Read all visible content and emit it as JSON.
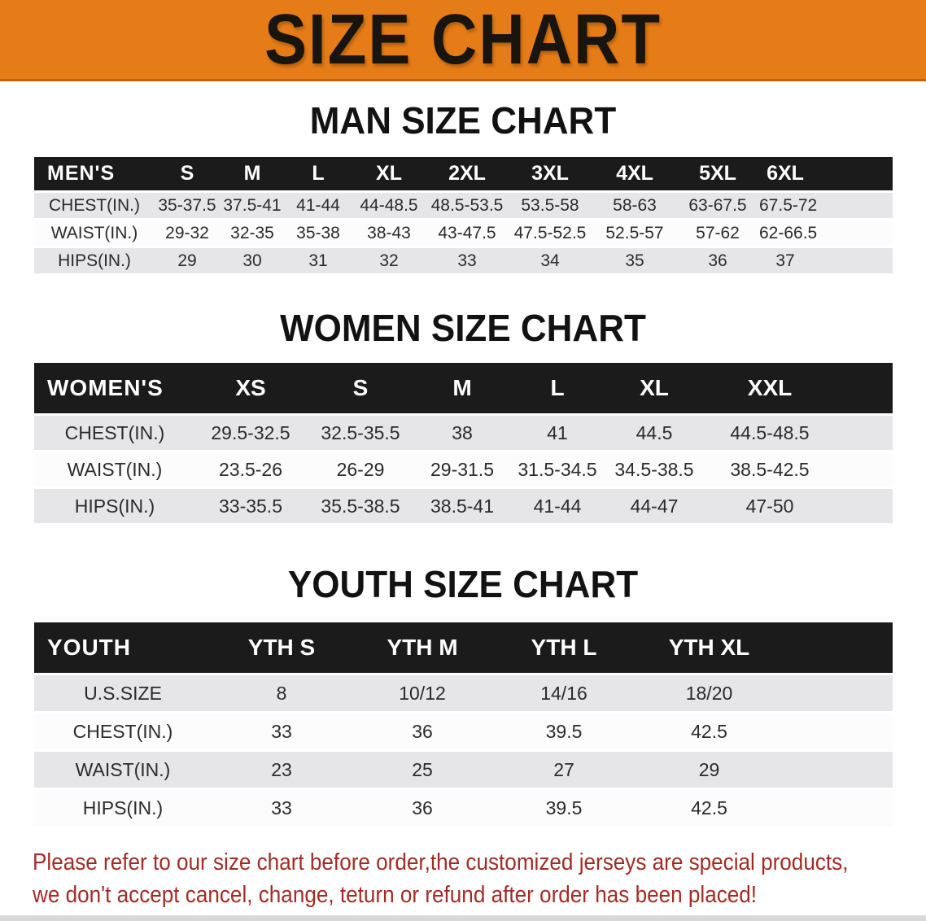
{
  "banner": {
    "title": "SIZE CHART",
    "bg_color": "#E67C17",
    "text_color": "#181410"
  },
  "sections": [
    {
      "heading": "MAN SIZE CHART",
      "table": {
        "header_label": "MEN'S",
        "columns": [
          "S",
          "M",
          "L",
          "XL",
          "2XL",
          "3XL",
          "4XL",
          "5XL",
          "6XL"
        ],
        "rows": [
          {
            "label": "CHEST(IN.)",
            "values": [
              "35-37.5",
              "37.5-41",
              "41-44",
              "44-48.5",
              "48.5-53.5",
              "53.5-58",
              "58-63",
              "63-67.5",
              "67.5-72"
            ]
          },
          {
            "label": "WAIST(IN.)",
            "values": [
              "29-32",
              "32-35",
              "35-38",
              "38-43",
              "43-47.5",
              "47.5-52.5",
              "52.5-57",
              "57-62",
              "62-66.5"
            ]
          },
          {
            "label": "HIPS(IN.)",
            "values": [
              "29",
              "30",
              "31",
              "32",
              "33",
              "34",
              "35",
              "36",
              "37"
            ]
          }
        ]
      }
    },
    {
      "heading": "WOMEN SIZE CHART",
      "table": {
        "header_label": "WOMEN'S",
        "columns": [
          "XS",
          "S",
          "M",
          "L",
          "XL",
          "XXL"
        ],
        "rows": [
          {
            "label": "CHEST(IN.)",
            "values": [
              "29.5-32.5",
              "32.5-35.5",
              "38",
              "41",
              "44.5",
              "44.5-48.5"
            ]
          },
          {
            "label": "WAIST(IN.)",
            "values": [
              "23.5-26",
              "26-29",
              "29-31.5",
              "31.5-34.5",
              "34.5-38.5",
              "38.5-42.5"
            ]
          },
          {
            "label": "HIPS(IN.)",
            "values": [
              "33-35.5",
              "35.5-38.5",
              "38.5-41",
              "41-44",
              "44-47",
              "47-50"
            ]
          }
        ]
      }
    },
    {
      "heading": "YOUTH SIZE CHART",
      "table": {
        "header_label": "YOUTH",
        "columns": [
          "YTH S",
          "YTH M",
          "YTH L",
          "YTH XL"
        ],
        "rows": [
          {
            "label": "U.S.SIZE",
            "values": [
              "8",
              "10/12",
              "14/16",
              "18/20"
            ]
          },
          {
            "label": "CHEST(IN.)",
            "values": [
              "33",
              "36",
              "39.5",
              "42.5"
            ]
          },
          {
            "label": "WAIST(IN.)",
            "values": [
              "23",
              "25",
              "27",
              "29"
            ]
          },
          {
            "label": "HIPS(IN.)",
            "values": [
              "33",
              "36",
              "39.5",
              "42.5"
            ]
          }
        ]
      }
    }
  ],
  "disclaimer": {
    "line1": "Please refer to our size chart before order,the customized jerseys are special products,",
    "line2": "we don't accept cancel, change, teturn or refund after order has been placed!",
    "text_color": "#A12C25"
  },
  "table_style": {
    "header_bg": "#1B1B1B",
    "row_alt_bg": "#E6E6E8",
    "row_bg": "#FCFCFC"
  }
}
